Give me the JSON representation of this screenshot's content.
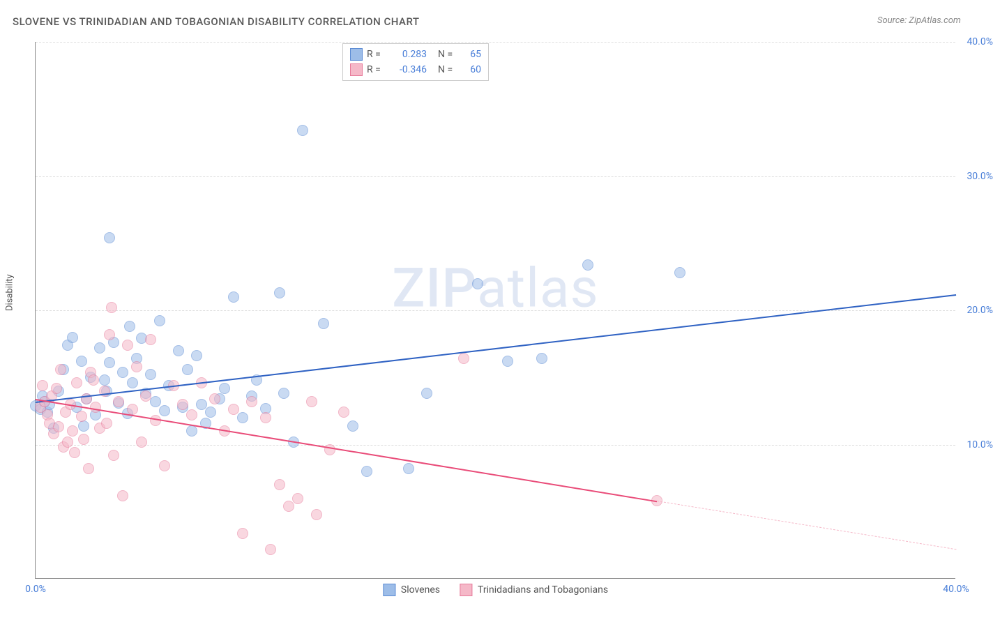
{
  "title": "SLOVENE VS TRINIDADIAN AND TOBAGONIAN DISABILITY CORRELATION CHART",
  "source": "Source: ZipAtlas.com",
  "watermark": "ZIPatlas",
  "y_axis_label": "Disability",
  "chart": {
    "type": "scatter",
    "xlim": [
      0,
      40
    ],
    "ylim": [
      0,
      40
    ],
    "xtick_labels": [
      "0.0%",
      "40.0%"
    ],
    "xtick_positions": [
      0,
      40
    ],
    "ytick_labels": [
      "10.0%",
      "20.0%",
      "30.0%",
      "40.0%"
    ],
    "ytick_positions": [
      10,
      20,
      30,
      40
    ],
    "grid_color": "#dddddd",
    "axis_color": "#888888",
    "background_color": "#ffffff",
    "label_color": "#4a7fd8",
    "marker_radius": 8,
    "marker_opacity": 0.55,
    "marker_stroke_opacity": 0.85
  },
  "series": [
    {
      "name": "Slovenes",
      "color_fill": "#9dbde8",
      "color_stroke": "#5b8bd4",
      "R": "0.283",
      "N": "65",
      "trend": {
        "x1": 0,
        "y1": 13.2,
        "x2": 40,
        "y2": 21.2,
        "color": "#2f62c3",
        "width": 2
      },
      "points": [
        [
          0.0,
          12.9
        ],
        [
          0.2,
          12.6
        ],
        [
          0.4,
          13.2
        ],
        [
          0.3,
          13.6
        ],
        [
          0.5,
          12.4
        ],
        [
          0.6,
          13.0
        ],
        [
          0.8,
          11.2
        ],
        [
          1.0,
          14.0
        ],
        [
          1.2,
          15.6
        ],
        [
          1.4,
          17.4
        ],
        [
          1.6,
          18.0
        ],
        [
          2.0,
          16.2
        ],
        [
          2.2,
          13.4
        ],
        [
          2.4,
          15.0
        ],
        [
          2.6,
          12.2
        ],
        [
          2.8,
          17.2
        ],
        [
          3.0,
          14.8
        ],
        [
          3.2,
          16.1
        ],
        [
          3.4,
          17.6
        ],
        [
          3.6,
          13.1
        ],
        [
          3.8,
          15.4
        ],
        [
          3.2,
          25.4
        ],
        [
          4.0,
          12.3
        ],
        [
          4.2,
          14.6
        ],
        [
          4.4,
          16.4
        ],
        [
          4.6,
          17.9
        ],
        [
          4.8,
          13.8
        ],
        [
          5.0,
          15.2
        ],
        [
          5.4,
          19.2
        ],
        [
          5.6,
          12.5
        ],
        [
          5.8,
          14.4
        ],
        [
          6.2,
          17.0
        ],
        [
          6.4,
          12.8
        ],
        [
          6.6,
          15.6
        ],
        [
          7.0,
          16.6
        ],
        [
          7.2,
          13.0
        ],
        [
          7.4,
          11.6
        ],
        [
          7.6,
          12.4
        ],
        [
          8.0,
          13.4
        ],
        [
          8.2,
          14.2
        ],
        [
          8.6,
          21.0
        ],
        [
          9.0,
          12.0
        ],
        [
          9.4,
          13.6
        ],
        [
          9.6,
          14.8
        ],
        [
          10.0,
          12.7
        ],
        [
          10.6,
          21.3
        ],
        [
          10.8,
          13.8
        ],
        [
          11.2,
          10.2
        ],
        [
          11.6,
          33.4
        ],
        [
          12.5,
          19.0
        ],
        [
          13.8,
          11.4
        ],
        [
          14.4,
          8.0
        ],
        [
          16.2,
          8.2
        ],
        [
          17.0,
          13.8
        ],
        [
          19.2,
          22.0
        ],
        [
          22.0,
          16.4
        ],
        [
          24.0,
          23.4
        ],
        [
          28.0,
          22.8
        ],
        [
          20.5,
          16.2
        ],
        [
          6.8,
          11.0
        ],
        [
          1.8,
          12.8
        ],
        [
          2.1,
          11.4
        ],
        [
          4.1,
          18.8
        ],
        [
          5.2,
          13.2
        ],
        [
          3.1,
          14.0
        ]
      ]
    },
    {
      "name": "Trinidadians and Tobagonians",
      "color_fill": "#f5b8c8",
      "color_stroke": "#e77a9a",
      "R": "-0.346",
      "N": "60",
      "trend": {
        "x1": 0,
        "y1": 13.4,
        "x2": 27,
        "y2": 5.8,
        "color": "#e94b78",
        "width": 2
      },
      "trend_dashed": {
        "x1": 27,
        "y1": 5.8,
        "x2": 40,
        "y2": 2.2,
        "color": "#f5b8c8",
        "width": 1
      },
      "points": [
        [
          0.2,
          12.8
        ],
        [
          0.4,
          13.2
        ],
        [
          0.5,
          12.2
        ],
        [
          0.6,
          11.6
        ],
        [
          0.7,
          13.6
        ],
        [
          0.8,
          10.8
        ],
        [
          0.9,
          14.2
        ],
        [
          1.0,
          11.3
        ],
        [
          1.1,
          15.6
        ],
        [
          1.2,
          9.8
        ],
        [
          1.3,
          12.4
        ],
        [
          1.4,
          10.2
        ],
        [
          1.5,
          13.0
        ],
        [
          1.6,
          11.0
        ],
        [
          1.8,
          14.6
        ],
        [
          2.0,
          12.1
        ],
        [
          2.1,
          10.4
        ],
        [
          2.2,
          13.4
        ],
        [
          2.4,
          15.4
        ],
        [
          2.6,
          12.8
        ],
        [
          2.8,
          11.2
        ],
        [
          3.0,
          14.0
        ],
        [
          3.2,
          18.2
        ],
        [
          3.3,
          20.2
        ],
        [
          3.4,
          9.2
        ],
        [
          3.6,
          13.2
        ],
        [
          3.8,
          6.2
        ],
        [
          4.0,
          17.4
        ],
        [
          4.2,
          12.6
        ],
        [
          4.4,
          15.8
        ],
        [
          4.6,
          10.2
        ],
        [
          4.8,
          13.6
        ],
        [
          5.0,
          17.8
        ],
        [
          5.2,
          11.8
        ],
        [
          5.6,
          8.4
        ],
        [
          6.0,
          14.4
        ],
        [
          6.4,
          13.0
        ],
        [
          6.8,
          12.2
        ],
        [
          7.2,
          14.6
        ],
        [
          7.8,
          13.4
        ],
        [
          8.2,
          11.0
        ],
        [
          8.6,
          12.6
        ],
        [
          9.0,
          3.4
        ],
        [
          9.4,
          13.2
        ],
        [
          10.0,
          12.0
        ],
        [
          10.2,
          2.2
        ],
        [
          10.6,
          7.0
        ],
        [
          11.0,
          5.4
        ],
        [
          11.4,
          6.0
        ],
        [
          12.0,
          13.2
        ],
        [
          12.2,
          4.8
        ],
        [
          12.8,
          9.6
        ],
        [
          13.4,
          12.4
        ],
        [
          18.6,
          16.4
        ],
        [
          27.0,
          5.8
        ],
        [
          2.3,
          8.2
        ],
        [
          0.3,
          14.4
        ],
        [
          1.7,
          9.4
        ],
        [
          2.5,
          14.8
        ],
        [
          3.1,
          11.6
        ]
      ]
    }
  ],
  "legend_top": {
    "r_label": "R =",
    "n_label": "N ="
  },
  "legend_bottom": {
    "items": [
      "Slovenes",
      "Trinidadians and Tobagonians"
    ]
  }
}
